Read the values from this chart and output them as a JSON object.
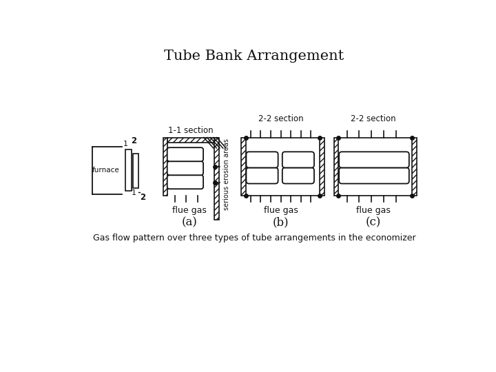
{
  "title": "Tube Bank Arrangement",
  "caption": "Gas flow pattern over three types of tube arrangements in the economizer",
  "label_a": "(a)",
  "label_b": "(b)",
  "label_c": "(c)",
  "section_1_1": "1-1 section",
  "section_2_2a": "2-2 section",
  "section_2_2b": "2-2 section",
  "flue_gas": "flue gas",
  "furnace": "furnace",
  "serious_erosion": "serious erosion areas",
  "bg_color": "#ffffff",
  "line_color": "#111111",
  "title_fontsize": 15,
  "caption_fontsize": 9
}
